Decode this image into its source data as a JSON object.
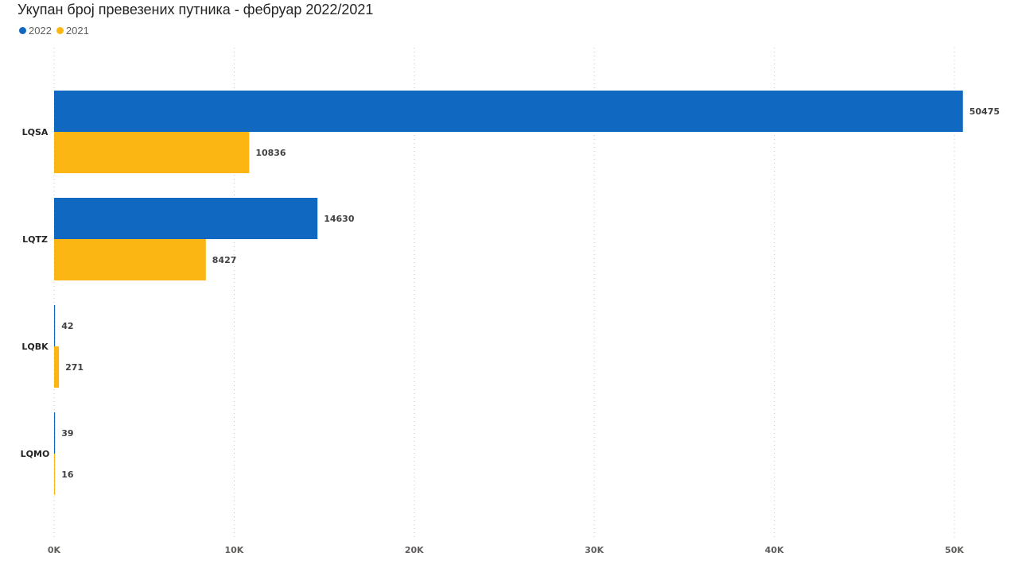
{
  "chart_data": {
    "type": "bar",
    "orientation": "horizontal",
    "title": "Укупан број превезених путника - фебруар 2022/2021",
    "categories": [
      "LQSA",
      "LQTZ",
      "LQBK",
      "LQMO"
    ],
    "series": [
      {
        "name": "2022",
        "color": "#1068c1",
        "values": [
          50475,
          14630,
          42,
          39
        ]
      },
      {
        "name": "2021",
        "color": "#fcb614",
        "values": [
          10836,
          8427,
          271,
          16
        ]
      }
    ],
    "xlim": [
      0,
      50000
    ],
    "xticks": [
      0,
      10000,
      20000,
      30000,
      40000,
      50000
    ],
    "xtick_labels": [
      "0K",
      "10K",
      "20K",
      "30K",
      "40K",
      "50K"
    ],
    "grid": true,
    "legend_position": "top-left"
  }
}
